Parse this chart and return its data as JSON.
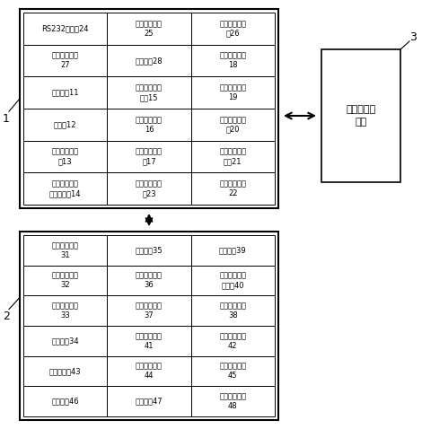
{
  "background_color": "#ffffff",
  "label1": "1",
  "label2": "2",
  "label3": "3",
  "label_terminal": "用电户手持\n终端",
  "box1_rows": [
    [
      "RS232串行口24",
      "频率调制模块\n25",
      "采集端放大模\n块26"
    ],
    [
      "带通滤波模块\n27",
      "耦合模块28",
      "数据处理模块\n18"
    ],
    [
      "抄表模块11",
      "供电线路采集\n模块15",
      "现场通信模块\n19"
    ],
    [
      "储存器12",
      "母线采集模块\n16",
      "通信卡服务模\n块20"
    ],
    [
      "温湿度监测模\n块13",
      "开关量采集模\n块17",
      "数据标识动态\n模块21"
    ],
    [
      "变压器数据信\n息采集模块14",
      "数据接口客户\n端23",
      "信息查验模块\n22"
    ]
  ],
  "box2_rows": [
    [
      "账户管理模块\n31",
      "信息平台35",
      "专家模块39"
    ],
    [
      "智能算法模块\n32",
      "数据分析模块\n36",
      "动态路由表生\n成模块40"
    ],
    [
      "传输安全模块\n33",
      "设备管理模块\n37",
      "消耗预测模块\n38"
    ],
    [
      "储存模块34",
      "数据收发模块\n41",
      "数据收发模块\n42"
    ],
    [
      "中央处理器43",
      "模数转换模块\n44",
      "时钟控制模块\n45"
    ],
    [
      "滤波模块46",
      "放大模块47",
      "频率调制模块\n48"
    ]
  ]
}
